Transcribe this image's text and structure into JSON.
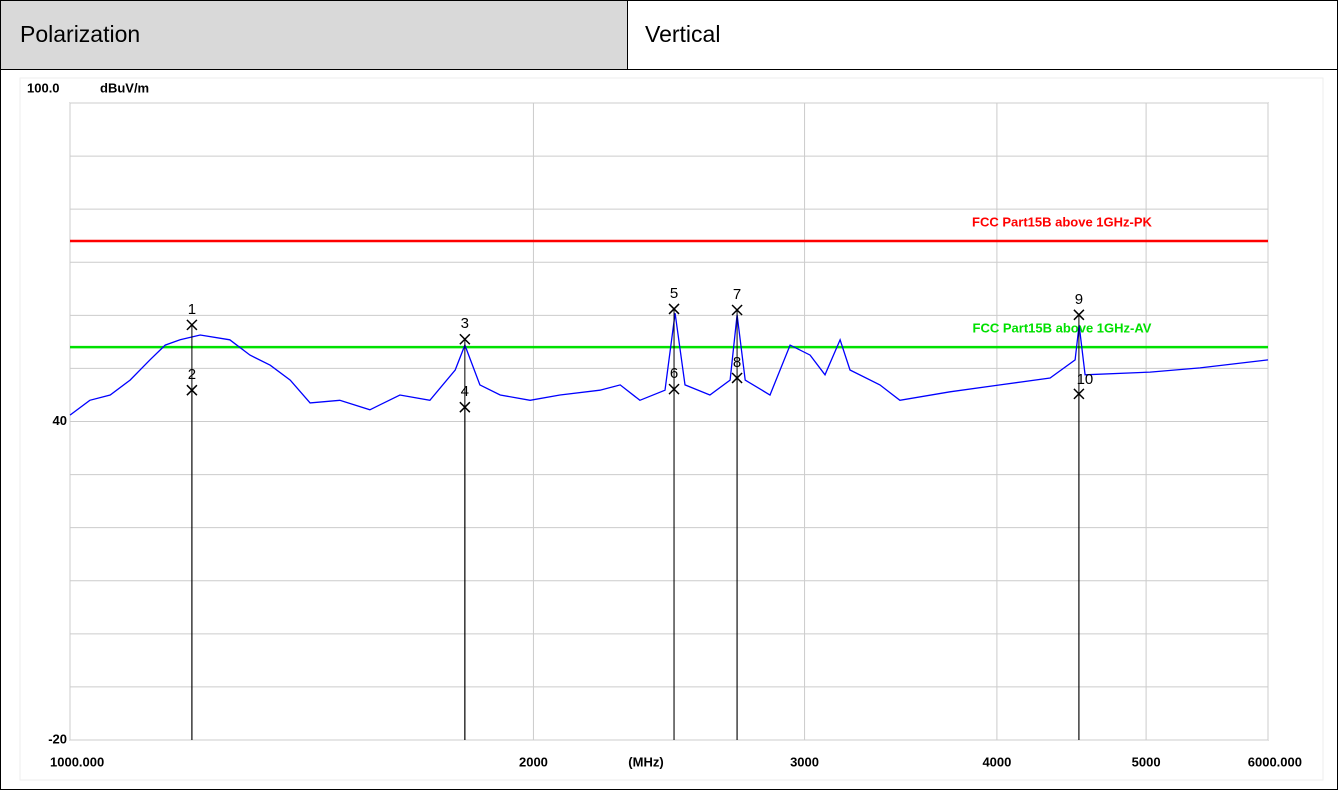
{
  "header": {
    "label": "Polarization",
    "value": "Vertical"
  },
  "chart_data": {
    "type": "line",
    "y_unit": "dBuV/m",
    "x_label": "(MHz)",
    "log_x": true,
    "xlim": [
      1000,
      6000
    ],
    "ylim": [
      -20,
      100
    ],
    "xticks": [
      {
        "value": 1000,
        "label": "1000.000"
      },
      2000,
      3000,
      4000,
      5000,
      {
        "value": 6000,
        "label": "6000.000"
      }
    ],
    "yticks": [
      {
        "value": 100,
        "label": "100.0"
      },
      40,
      -20
    ],
    "ygrid": [
      -10,
      0,
      10,
      20,
      30,
      50,
      60,
      70,
      80,
      90
    ],
    "x": [
      1000,
      1030,
      1062,
      1094,
      1127,
      1153,
      1179,
      1215,
      1270,
      1309,
      1349,
      1390,
      1432,
      1497,
      1566,
      1638,
      1713,
      1779,
      1805,
      1846,
      1903,
      1990,
      2081,
      2209,
      2277,
      2345,
      2435,
      2472,
      2509,
      2604,
      2684,
      2712,
      2745,
      2849,
      2936,
      3025,
      3093,
      3164,
      3211,
      3358,
      3460,
      3729,
      4019,
      4331,
      4496,
      4523,
      4564,
      5030,
      5420,
      6000
    ],
    "series": [
      {
        "color": "#0000ff",
        "values": [
          41.2,
          44,
          45,
          47.8,
          51.6,
          54.4,
          55.4,
          56.3,
          55.4,
          52.5,
          50.6,
          47.8,
          43.5,
          44,
          42.2,
          45,
          44,
          49.7,
          54.4,
          46.9,
          45,
          44,
          45,
          45.9,
          46.9,
          44,
          45.9,
          60.4,
          46.9,
          45,
          47.8,
          60.1,
          47.8,
          45,
          54.4,
          52.5,
          48.8,
          55.4,
          49.7,
          46.9,
          44,
          45.6,
          46.9,
          48.2,
          51.6,
          58.2,
          48.8,
          49.3,
          50.1,
          51.6
        ]
      }
    ],
    "limits": [
      {
        "name": "FCC Part15B above 1GHz-PK",
        "color": "#ff0000",
        "value": 74
      },
      {
        "name": "FCC Part15B above 1GHz-AV",
        "color": "#00e000",
        "value": 54
      }
    ],
    "markers": [
      {
        "label": "1",
        "x": 1200,
        "y": 58.2
      },
      {
        "label": "2",
        "x": 1200,
        "y": 45.9
      },
      {
        "label": "3",
        "x": 1805,
        "y": 55.5
      },
      {
        "label": "4",
        "x": 1805,
        "y": 42.7
      },
      {
        "label": "5",
        "x": 2468,
        "y": 61.2
      },
      {
        "label": "6",
        "x": 2468,
        "y": 46.1
      },
      {
        "label": "7",
        "x": 2712,
        "y": 61.0
      },
      {
        "label": "8",
        "x": 2712,
        "y": 48.2
      },
      {
        "label": "9",
        "x": 4522,
        "y": 60.1
      },
      {
        "label": "10",
        "x": 4522,
        "y": 45.2
      }
    ]
  }
}
